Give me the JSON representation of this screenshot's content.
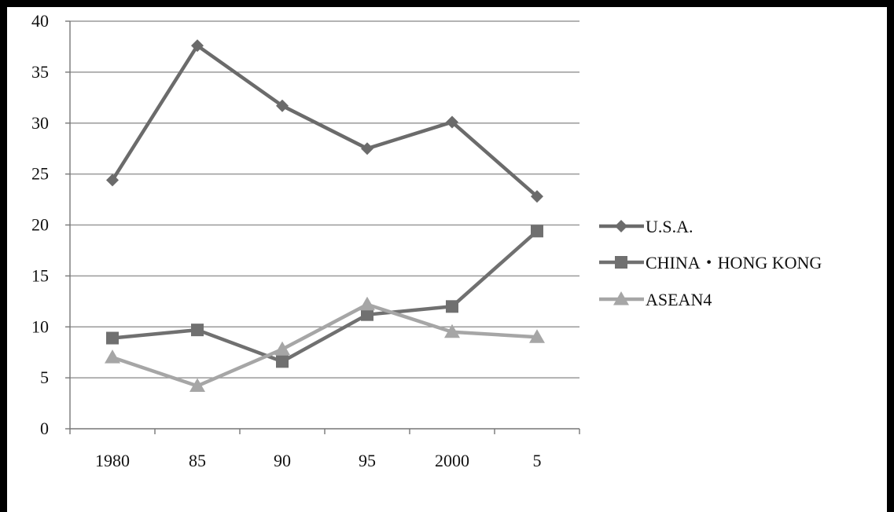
{
  "chart_data": {
    "type": "line",
    "title": "",
    "xlabel": "",
    "ylabel": "",
    "categories": [
      "1980",
      "85",
      "90",
      "95",
      "2000",
      "5"
    ],
    "ylim": [
      0,
      40
    ],
    "yticks": [
      0,
      5,
      10,
      15,
      20,
      25,
      30,
      35,
      40
    ],
    "grid": "horizontal",
    "legend_position": "right",
    "series": [
      {
        "name": "U.S.A.",
        "values": [
          24.4,
          37.6,
          31.7,
          27.5,
          30.1,
          22.8
        ],
        "color": "#6b6b6b",
        "marker": "diamond"
      },
      {
        "name": "CHINA・HONG KONG",
        "values": [
          8.9,
          9.7,
          6.6,
          11.2,
          12.0,
          19.4
        ],
        "color": "#707070",
        "marker": "square"
      },
      {
        "name": "ASEAN4",
        "values": [
          7.0,
          4.2,
          7.8,
          12.2,
          9.5,
          9.0
        ],
        "color": "#a6a6a6",
        "marker": "triangle"
      }
    ]
  }
}
